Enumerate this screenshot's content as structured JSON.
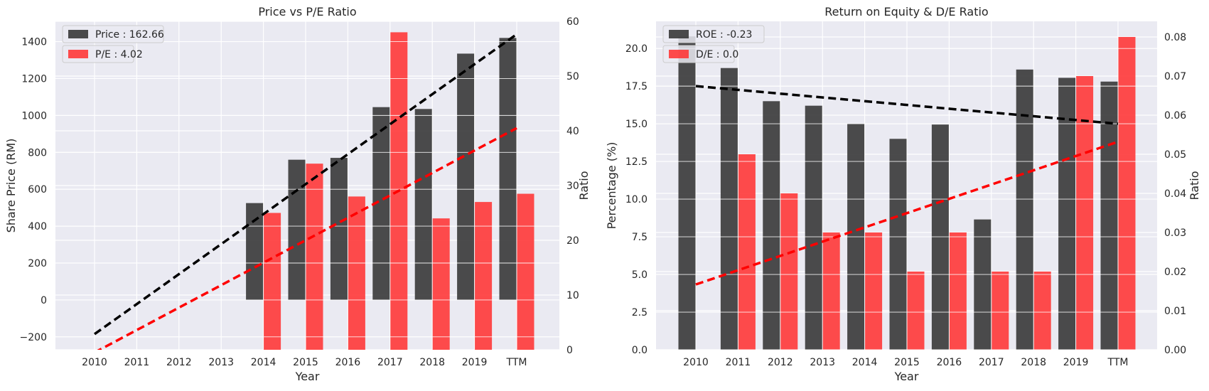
{
  "chart_data": [
    {
      "type": "bar",
      "title": "Price vs P/E Ratio",
      "xlabel": "Year",
      "ylabel": "Share Price (RM)",
      "y2label": "Ratio",
      "categories": [
        "2010",
        "2011",
        "2012",
        "2013",
        "2014",
        "2015",
        "2016",
        "2017",
        "2018",
        "2019",
        "TTM"
      ],
      "ylim": [
        -270,
        1510
      ],
      "yticks": [
        -200,
        0,
        200,
        400,
        600,
        800,
        1000,
        1200,
        1400
      ],
      "y2lim": [
        0,
        60
      ],
      "y2ticks": [
        0,
        10,
        20,
        30,
        40,
        50,
        60
      ],
      "legend_position": "top-left",
      "grid": true,
      "series": [
        {
          "name": "Price : 162.66",
          "axis": "left",
          "color": "#333333",
          "values": [
            null,
            null,
            null,
            null,
            525,
            760,
            770,
            1045,
            1035,
            1335,
            1420
          ]
        },
        {
          "name": "P/E : 4.02",
          "axis": "right",
          "color": "#ff3333",
          "values": [
            null,
            null,
            null,
            null,
            25,
            34,
            28,
            58,
            24,
            27,
            28.5
          ]
        }
      ],
      "trendlines": [
        {
          "axis": "left",
          "color": "#000000",
          "x": [
            "2010",
            "TTM"
          ],
          "y": [
            -185,
            1440
          ]
        },
        {
          "axis": "right",
          "color": "#ff0000",
          "x": [
            "2010",
            "TTM"
          ],
          "y": [
            -0.5,
            40.5
          ]
        }
      ]
    },
    {
      "type": "bar",
      "title": "Return on Equity & D/E Ratio",
      "xlabel": "Year",
      "ylabel": "Percentage (%)",
      "y2label": "Ratio",
      "categories": [
        "2010",
        "2011",
        "2012",
        "2013",
        "2014",
        "2015",
        "2016",
        "2017",
        "2018",
        "2019",
        "TTM"
      ],
      "ylim": [
        0,
        21.8
      ],
      "yticks": [
        0.0,
        2.5,
        5.0,
        7.5,
        10.0,
        12.5,
        15.0,
        17.5,
        20.0
      ],
      "ytick_labels": [
        "0.0",
        "2.5",
        "5.0",
        "7.5",
        "10.0",
        "12.5",
        "15.0",
        "17.5",
        "20.0"
      ],
      "y2lim": [
        0,
        0.084
      ],
      "y2ticks": [
        0.0,
        0.01,
        0.02,
        0.03,
        0.04,
        0.05,
        0.06,
        0.07,
        0.08
      ],
      "y2tick_labels": [
        "0.00",
        "0.01",
        "0.02",
        "0.03",
        "0.04",
        "0.05",
        "0.06",
        "0.07",
        "0.08"
      ],
      "legend_position": "top-left",
      "grid": true,
      "series": [
        {
          "name": "ROE : -0.23",
          "axis": "left",
          "color": "#333333",
          "values": [
            20.8,
            18.7,
            16.5,
            16.2,
            15.0,
            14.0,
            14.95,
            8.65,
            18.6,
            18.05,
            17.8
          ]
        },
        {
          "name": "D/E : 0.0",
          "axis": "right",
          "color": "#ff3333",
          "values": [
            null,
            0.05,
            0.04,
            0.03,
            0.03,
            0.02,
            0.03,
            0.02,
            0.02,
            0.07,
            0.08
          ]
        }
      ],
      "trendlines": [
        {
          "axis": "left",
          "color": "#000000",
          "x": [
            "2010",
            "TTM"
          ],
          "y": [
            17.5,
            15.0
          ]
        },
        {
          "axis": "right",
          "color": "#ff0000",
          "x": [
            "2010",
            "TTM"
          ],
          "y": [
            0.0167,
            0.0532
          ]
        }
      ]
    }
  ]
}
